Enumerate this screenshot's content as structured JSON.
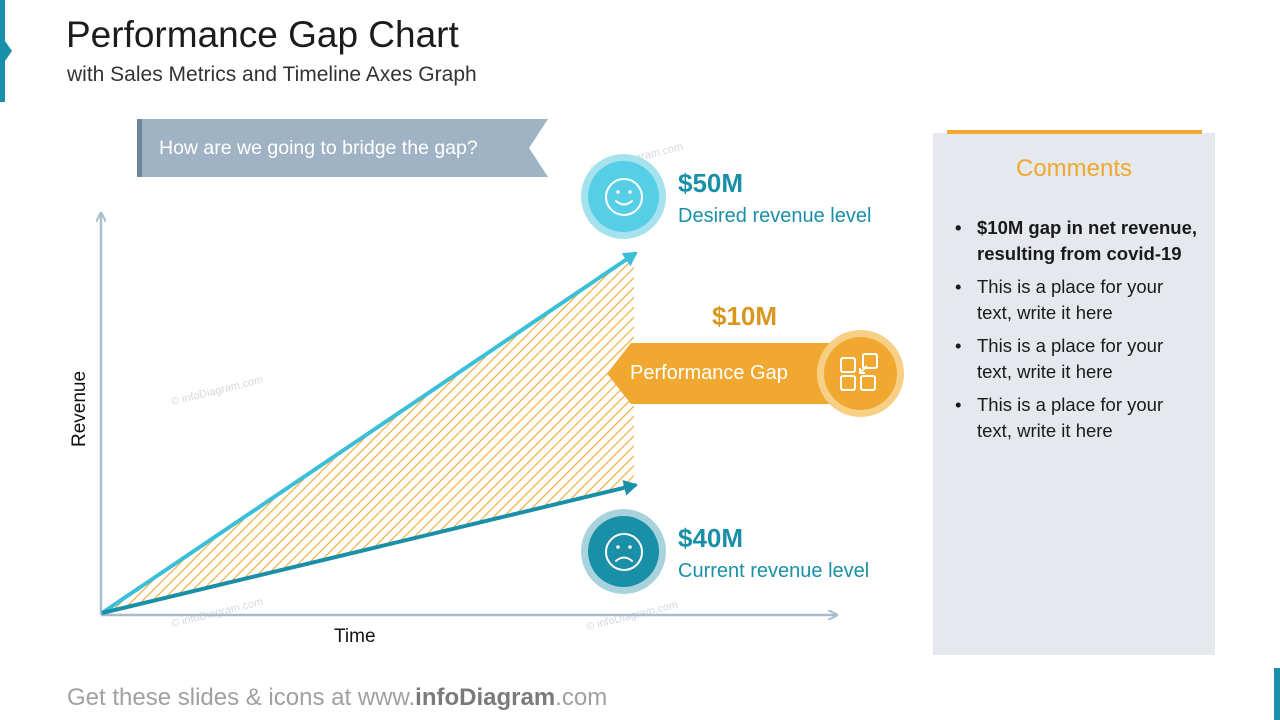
{
  "header": {
    "title": "Performance Gap Chart",
    "subtitle": "with Sales Metrics and Timeline Axes Graph"
  },
  "banner": {
    "text": "How are we going to bridge the gap?"
  },
  "diagram": {
    "x_axis_label": "Time",
    "y_axis_label": "Revenue",
    "desired": {
      "value": "$50M",
      "label": "Desired revenue level",
      "icon": "smiley-face-icon",
      "color": "#3bbfd8"
    },
    "current": {
      "value": "$40M",
      "label": "Current revenue level",
      "icon": "sad-face-icon",
      "color": "#1a8fa8"
    },
    "gap": {
      "value": "$10M",
      "label": "Performance Gap",
      "icon": "squares-collapse-icon",
      "color": "#f0a830"
    }
  },
  "comments": {
    "title": "Comments",
    "items": [
      {
        "text": "$10M gap in net revenue, resulting from covid-19",
        "bold": true
      },
      {
        "text": "This is a place for your text, write it here",
        "bold": false
      },
      {
        "text": "This is a place for your text, write it here",
        "bold": false
      },
      {
        "text": "This is a place for your text, write it here",
        "bold": false
      }
    ]
  },
  "watermarks": [
    "© infoDiagram.com",
    "© infoDiagram.com",
    "© infoDiagram.com",
    "© infoDiagram.com"
  ],
  "footer": {
    "prefix": "Get these slides & icons at www.",
    "brand": "infoDiagram",
    "suffix": ".com"
  },
  "colors": {
    "accent_teal": "#1a8fa8",
    "light_cyan": "#3bbfd8",
    "orange": "#f0a830",
    "banner_gray": "#9fb3c4",
    "panel_gray": "#e5e8ed"
  }
}
